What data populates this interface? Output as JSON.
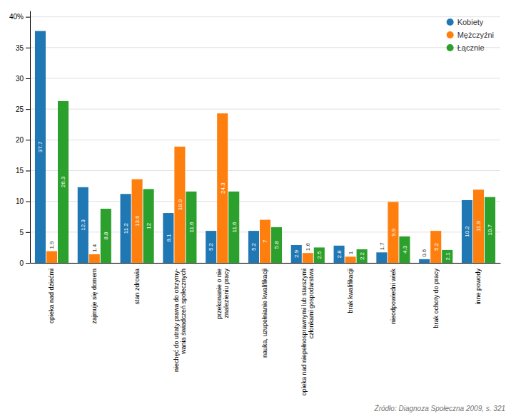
{
  "chart_data": {
    "type": "bar",
    "categories": [
      "opieka nad dziećmi",
      "zajmuje się domem",
      "stan zdrowia",
      "niechęć do utraty prawa do otrzymy-\nwania świadczeń społecznych",
      "przekonanie o nie\nznalezieniu pracy",
      "nauka, uzupełnianie kwalifikacji",
      "opieka nad niepełnosprawnymi lub starszymi\nczłonkami gospodarstwa",
      "brak kwalifikacji",
      "nieodpowiedni wiek",
      "brak ochoty do pracy",
      "inne powody"
    ],
    "series": [
      {
        "name": "Kobiety",
        "color": "#1f77b4",
        "values": [
          37.7,
          12.3,
          11.2,
          8.1,
          5.2,
          5.2,
          2.9,
          2.8,
          1.7,
          0.6,
          10.2
        ]
      },
      {
        "name": "Mężczyźni",
        "color": "#ff7f0e",
        "values": [
          1.9,
          1.4,
          13.6,
          18.9,
          24.3,
          7.0,
          1.6,
          1.0,
          9.9,
          5.2,
          11.9
        ]
      },
      {
        "name": "Łącznie",
        "color": "#2ca02c",
        "values": [
          26.3,
          8.8,
          12.0,
          11.6,
          11.6,
          5.8,
          2.5,
          2.2,
          4.3,
          2.1,
          10.7
        ]
      }
    ],
    "ylim": [
      0,
      41
    ],
    "yticks": [
      0,
      5,
      10,
      15,
      20,
      25,
      30,
      35,
      {
        "value": 40,
        "label": "40%"
      }
    ],
    "grid": true,
    "legend": "upper right",
    "data_labels": true,
    "source": "Źródło: Diagnoza Społeczna 2009, s. 321"
  }
}
